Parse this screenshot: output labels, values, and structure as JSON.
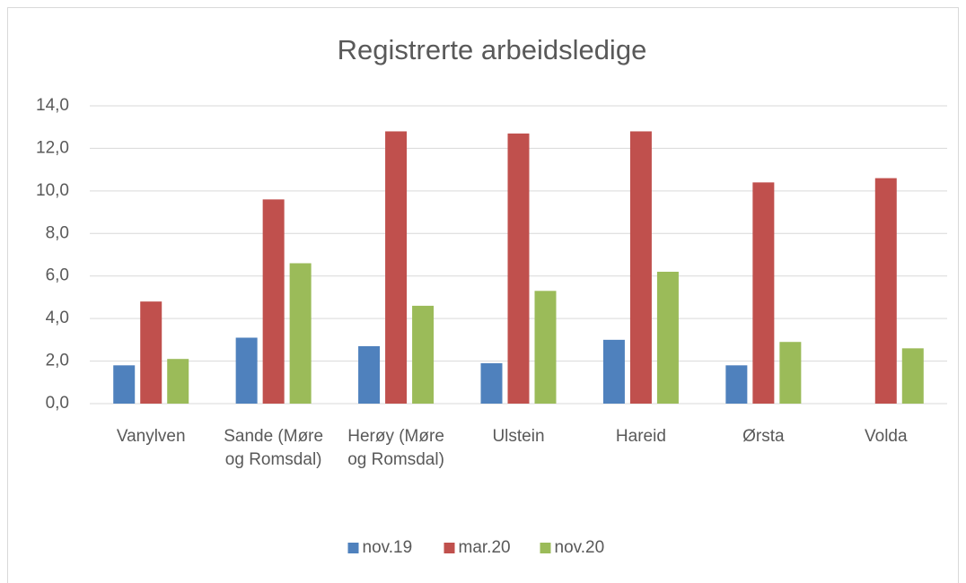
{
  "chart_data": {
    "type": "bar",
    "title": "Registrerte arbeidsledige",
    "categories": [
      "Vanylven",
      "Sande (Møre og Romsdal)",
      "Herøy (Møre og Romsdal)",
      "Ulstein",
      "Hareid",
      "Ørsta",
      "Volda"
    ],
    "series": [
      {
        "name": "nov.19",
        "color": "#4f81bd",
        "values": [
          1.8,
          3.1,
          2.7,
          1.9,
          3.0,
          1.8,
          null
        ]
      },
      {
        "name": "mar.20",
        "color": "#c0504d",
        "values": [
          4.8,
          9.6,
          12.8,
          12.7,
          12.8,
          10.4,
          10.6
        ]
      },
      {
        "name": "nov.20",
        "color": "#9bbb59",
        "values": [
          2.1,
          6.6,
          4.6,
          5.3,
          6.2,
          2.9,
          2.6
        ]
      }
    ],
    "ylim": [
      0,
      14
    ],
    "yticks": [
      {
        "value": 0,
        "label": "0,0"
      },
      {
        "value": 2,
        "label": "2,0"
      },
      {
        "value": 4,
        "label": "4,0"
      },
      {
        "value": 6,
        "label": "6,0"
      },
      {
        "value": 8,
        "label": "8,0"
      },
      {
        "value": 10,
        "label": "10,0"
      },
      {
        "value": 12,
        "label": "12,0"
      },
      {
        "value": 14,
        "label": "14,0"
      }
    ],
    "grid": true,
    "legend": "bottom"
  }
}
